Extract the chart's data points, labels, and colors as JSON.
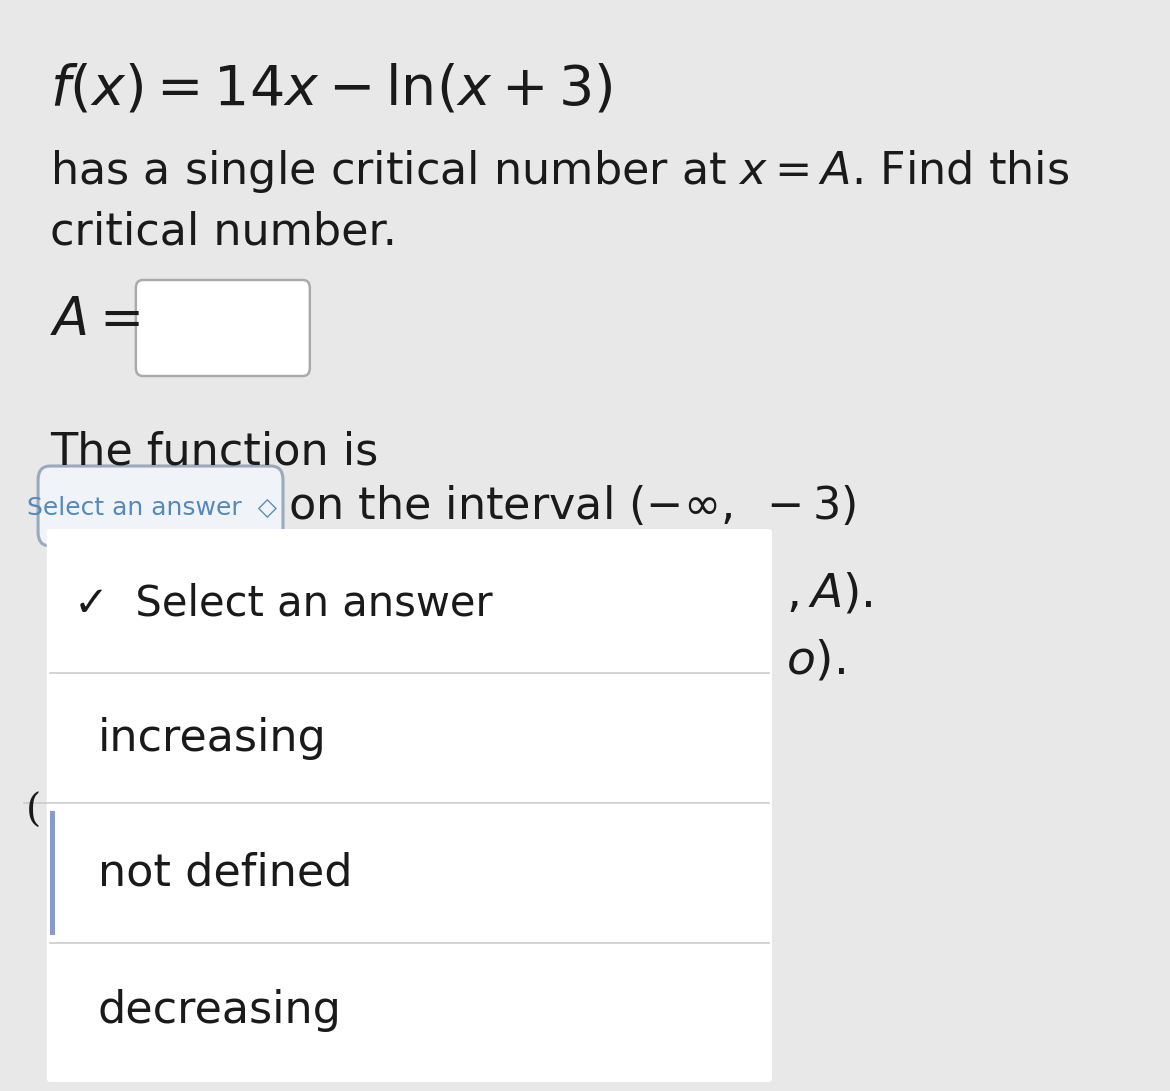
{
  "bg_color": "#e8e8e8",
  "white": "#ffffff",
  "dropdown_bg": "#f0f4f8",
  "text_color": "#1a1a1a",
  "blue_text": "#5588bb",
  "border_color": "#bbbbbb",
  "btn_border": "#99aabb",
  "sep_color": "#cccccc",
  "accent_bar": "#9999cc",
  "title_formula": "$f(x) = 14x - \\ln(x + 3)$",
  "line1": "has a single critical number at $x = A$. Find this",
  "line2": "critical number.",
  "a_label": "$A =$",
  "func_is": "The function is",
  "select_btn_text": "Select an answer  ◇",
  "on_interval": "on the interval $( - \\infty,\\ -3)$",
  "right_lines": [
    "$, A).$",
    "$o).$"
  ],
  "check_select": "✓  Select an answer",
  "dropdown_items": [
    "increasing",
    "not defined",
    "decreasing"
  ],
  "figw": 11.7,
  "figh": 10.91,
  "dpi": 100
}
